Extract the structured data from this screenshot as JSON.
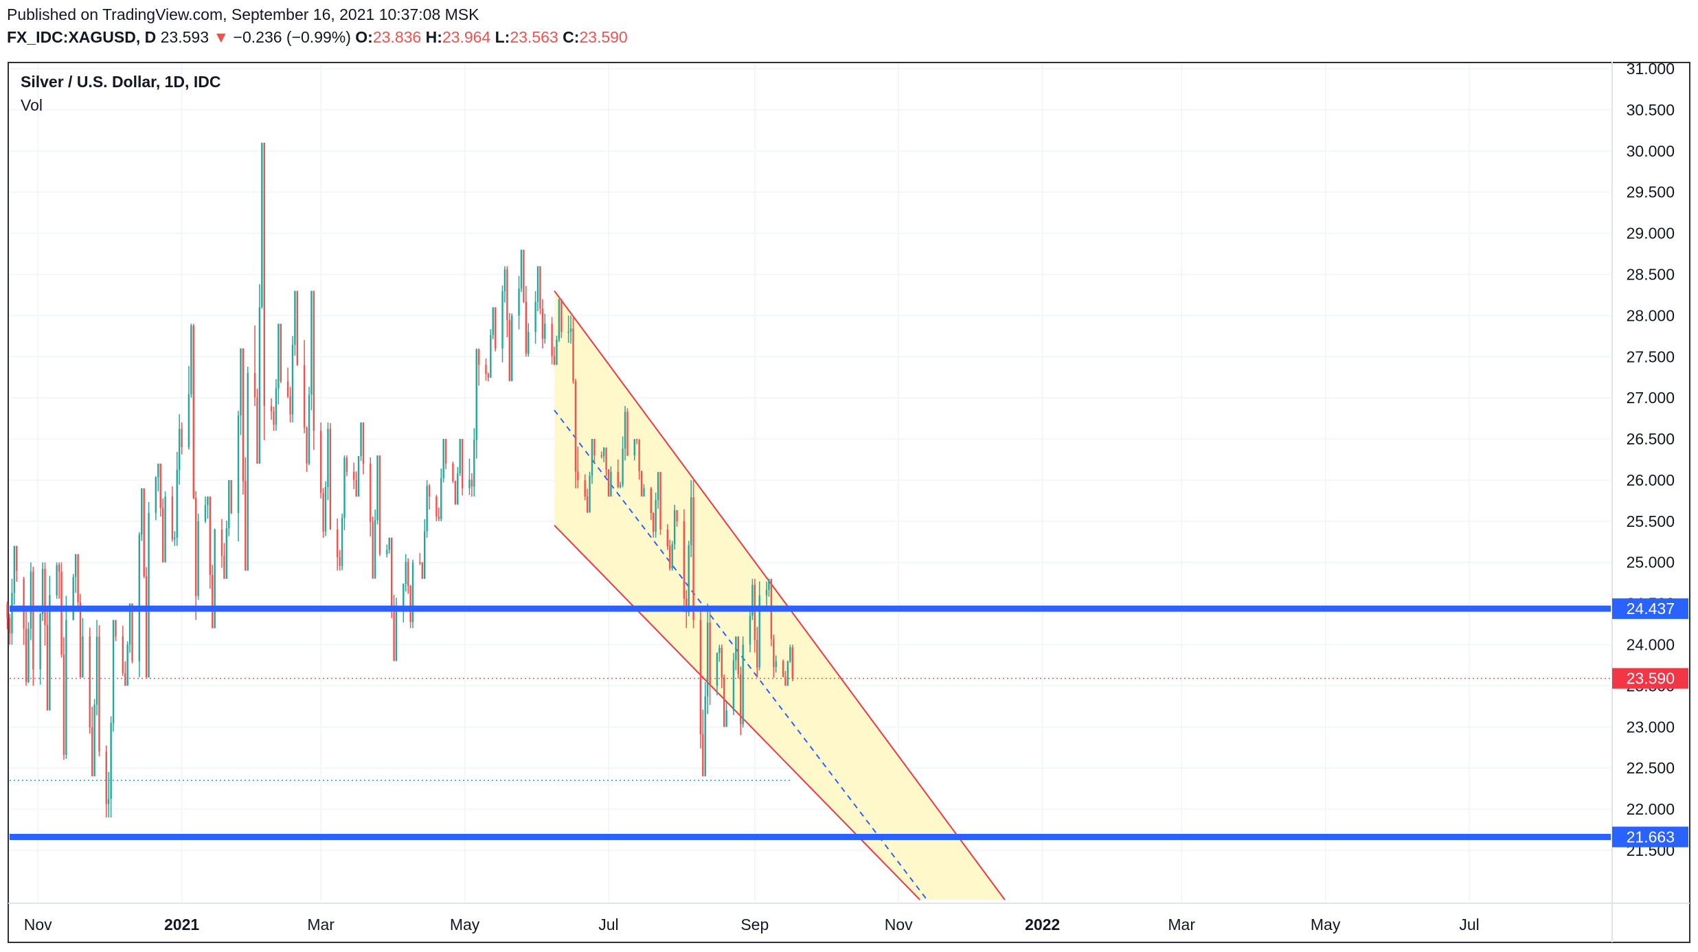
{
  "header": {
    "published": "Published on TradingView.com, September 16, 2021 10:37:08 MSK",
    "symbol": "FX_IDC:XAGUSD, D",
    "last": "23.593",
    "change_arrow": "▼",
    "change": "−0.236 (−0.99%)",
    "o_label": "O:",
    "o_value": "23.836",
    "h_label": "H:",
    "h_value": "23.964",
    "l_label": "L:",
    "l_value": "23.563",
    "c_label": "C:",
    "c_value": "23.590"
  },
  "legend": {
    "title": "Silver / U.S. Dollar, 1D, IDC",
    "vol": "Vol"
  },
  "colors": {
    "up": "#26a69a",
    "down": "#ef5350",
    "level_line": "#2962ff",
    "channel": "#f23645",
    "channel_fill": "#fff7c5",
    "midline": "#2962ff",
    "price_label": "#f23645"
  },
  "chart_data": {
    "type": "candlestick",
    "title": "Silver / U.S. Dollar, 1D, IDC",
    "y_ticks": [
      "31.000",
      "30.500",
      "30.000",
      "29.500",
      "29.000",
      "28.500",
      "28.000",
      "27.500",
      "27.000",
      "26.500",
      "26.000",
      "25.500",
      "25.000",
      "24.500",
      "24.000",
      "23.500",
      "23.000",
      "22.500",
      "22.000",
      "21.500"
    ],
    "x_ticks": [
      {
        "label": "Nov",
        "date": "2020-11-01",
        "bold": false
      },
      {
        "label": "2021",
        "date": "2021-01-01",
        "bold": true
      },
      {
        "label": "Mar",
        "date": "2021-03-01",
        "bold": false
      },
      {
        "label": "May",
        "date": "2021-05-01",
        "bold": false
      },
      {
        "label": "Jul",
        "date": "2021-07-01",
        "bold": false
      },
      {
        "label": "Sep",
        "date": "2021-09-01",
        "bold": false
      },
      {
        "label": "Nov",
        "date": "2021-11-01",
        "bold": false
      },
      {
        "label": "2022",
        "date": "2022-01-01",
        "bold": true
      },
      {
        "label": "Mar",
        "date": "2022-03-01",
        "bold": false
      },
      {
        "label": "May",
        "date": "2022-05-01",
        "bold": false
      },
      {
        "label": "Jul",
        "date": "2022-07-01",
        "bold": false
      }
    ],
    "ylim": [
      21.1,
      31.0
    ],
    "xlim": [
      "2020-10-20",
      "2022-08-30"
    ],
    "grid": true,
    "levels": [
      {
        "label": "24.437",
        "price": 24.437
      },
      {
        "label": "21.663",
        "price": 21.663
      }
    ],
    "current_price": {
      "label": "23.590",
      "price": 23.59
    },
    "reference_low": {
      "price": 22.35,
      "from": "2020-10-20",
      "to": "2021-09-16"
    },
    "channel": {
      "upper": [
        {
          "date": "2021-06-08",
          "price": 28.3
        },
        {
          "date": "2021-12-16",
          "price": 20.9
        }
      ],
      "lower": [
        {
          "date": "2021-06-08",
          "price": 25.45
        },
        {
          "date": "2021-11-10",
          "price": 20.9
        }
      ],
      "mid": [
        {
          "date": "2021-06-08",
          "price": 26.85
        },
        {
          "date": "2021-11-13",
          "price": 20.9
        }
      ]
    },
    "series": [
      {
        "date": "2020-10-19",
        "open": 24.5,
        "high": 25.2,
        "low": 24.0,
        "close": 24.9
      },
      {
        "date": "2020-10-26",
        "open": 24.8,
        "high": 25.0,
        "low": 23.5,
        "close": 23.7
      },
      {
        "date": "2020-11-02",
        "open": 23.7,
        "high": 25.0,
        "low": 23.2,
        "close": 24.6
      },
      {
        "date": "2020-11-09",
        "open": 24.6,
        "high": 25.0,
        "low": 22.6,
        "close": 24.3
      },
      {
        "date": "2020-11-16",
        "open": 24.3,
        "high": 25.1,
        "low": 23.6,
        "close": 24.1
      },
      {
        "date": "2020-11-23",
        "open": 24.1,
        "high": 24.3,
        "low": 22.4,
        "close": 22.7
      },
      {
        "date": "2020-11-30",
        "open": 22.7,
        "high": 24.3,
        "low": 21.9,
        "close": 24.1
      },
      {
        "date": "2020-12-07",
        "open": 24.1,
        "high": 24.5,
        "low": 23.5,
        "close": 23.8
      },
      {
        "date": "2020-12-14",
        "open": 23.8,
        "high": 25.9,
        "low": 23.6,
        "close": 25.6
      },
      {
        "date": "2020-12-21",
        "open": 25.6,
        "high": 26.2,
        "low": 25.0,
        "close": 25.8
      },
      {
        "date": "2020-12-28",
        "open": 25.8,
        "high": 26.8,
        "low": 25.2,
        "close": 26.4
      },
      {
        "date": "2021-01-04",
        "open": 26.4,
        "high": 27.9,
        "low": 24.3,
        "close": 25.5
      },
      {
        "date": "2021-01-11",
        "open": 25.5,
        "high": 25.8,
        "low": 24.2,
        "close": 25.4
      },
      {
        "date": "2021-01-18",
        "open": 25.4,
        "high": 26.0,
        "low": 24.8,
        "close": 25.6
      },
      {
        "date": "2021-01-25",
        "open": 25.6,
        "high": 27.6,
        "low": 24.9,
        "close": 27.3
      },
      {
        "date": "2021-02-01",
        "open": 27.3,
        "high": 30.1,
        "low": 26.2,
        "close": 26.9
      },
      {
        "date": "2021-02-08",
        "open": 26.9,
        "high": 27.9,
        "low": 26.6,
        "close": 27.2
      },
      {
        "date": "2021-02-15",
        "open": 27.2,
        "high": 28.3,
        "low": 26.7,
        "close": 27.4
      },
      {
        "date": "2021-02-22",
        "open": 27.4,
        "high": 28.3,
        "low": 26.1,
        "close": 26.6
      },
      {
        "date": "2021-03-01",
        "open": 26.6,
        "high": 26.7,
        "low": 25.3,
        "close": 25.4
      },
      {
        "date": "2021-03-08",
        "open": 25.4,
        "high": 26.3,
        "low": 24.9,
        "close": 26.1
      },
      {
        "date": "2021-03-15",
        "open": 26.1,
        "high": 26.7,
        "low": 25.8,
        "close": 26.2
      },
      {
        "date": "2021-03-22",
        "open": 26.2,
        "high": 26.3,
        "low": 24.8,
        "close": 25.1
      },
      {
        "date": "2021-03-29",
        "open": 25.1,
        "high": 25.3,
        "low": 23.8,
        "close": 24.4
      },
      {
        "date": "2021-04-05",
        "open": 24.4,
        "high": 25.1,
        "low": 24.2,
        "close": 25.0
      },
      {
        "date": "2021-04-12",
        "open": 25.0,
        "high": 26.0,
        "low": 24.8,
        "close": 25.8
      },
      {
        "date": "2021-04-19",
        "open": 25.8,
        "high": 26.5,
        "low": 25.5,
        "close": 26.2
      },
      {
        "date": "2021-04-26",
        "open": 26.2,
        "high": 26.5,
        "low": 25.7,
        "close": 25.9
      },
      {
        "date": "2021-05-03",
        "open": 25.9,
        "high": 27.6,
        "low": 25.8,
        "close": 27.4
      },
      {
        "date": "2021-05-10",
        "open": 27.4,
        "high": 28.1,
        "low": 27.2,
        "close": 27.6
      },
      {
        "date": "2021-05-17",
        "open": 27.6,
        "high": 28.6,
        "low": 27.2,
        "close": 28.0
      },
      {
        "date": "2021-05-24",
        "open": 28.0,
        "high": 28.8,
        "low": 27.5,
        "close": 27.8
      },
      {
        "date": "2021-05-31",
        "open": 27.8,
        "high": 28.6,
        "low": 27.6,
        "close": 27.9
      },
      {
        "date": "2021-06-07",
        "open": 27.9,
        "high": 28.2,
        "low": 27.4,
        "close": 27.8
      },
      {
        "date": "2021-06-14",
        "open": 27.8,
        "high": 28.0,
        "low": 25.9,
        "close": 26.0
      },
      {
        "date": "2021-06-21",
        "open": 26.0,
        "high": 26.5,
        "low": 25.6,
        "close": 26.3
      },
      {
        "date": "2021-06-28",
        "open": 26.3,
        "high": 26.4,
        "low": 25.8,
        "close": 26.1
      },
      {
        "date": "2021-07-05",
        "open": 26.1,
        "high": 26.9,
        "low": 25.9,
        "close": 26.3
      },
      {
        "date": "2021-07-12",
        "open": 26.3,
        "high": 26.5,
        "low": 25.8,
        "close": 25.9
      },
      {
        "date": "2021-07-19",
        "open": 25.9,
        "high": 26.1,
        "low": 25.3,
        "close": 25.4
      },
      {
        "date": "2021-07-26",
        "open": 25.4,
        "high": 25.7,
        "low": 24.9,
        "close": 25.5
      },
      {
        "date": "2021-08-02",
        "open": 25.5,
        "high": 26.0,
        "low": 24.2,
        "close": 24.3
      },
      {
        "date": "2021-08-09",
        "open": 24.3,
        "high": 24.5,
        "low": 22.4,
        "close": 23.5
      },
      {
        "date": "2021-08-16",
        "open": 23.5,
        "high": 24.0,
        "low": 23.0,
        "close": 23.2
      },
      {
        "date": "2021-08-23",
        "open": 23.2,
        "high": 24.1,
        "low": 22.9,
        "close": 24.0
      },
      {
        "date": "2021-08-30",
        "open": 24.0,
        "high": 24.8,
        "low": 23.6,
        "close": 24.6
      },
      {
        "date": "2021-09-06",
        "open": 24.6,
        "high": 24.8,
        "low": 23.6,
        "close": 23.8
      },
      {
        "date": "2021-09-13",
        "open": 23.8,
        "high": 24.0,
        "low": 23.5,
        "close": 23.59
      }
    ]
  }
}
